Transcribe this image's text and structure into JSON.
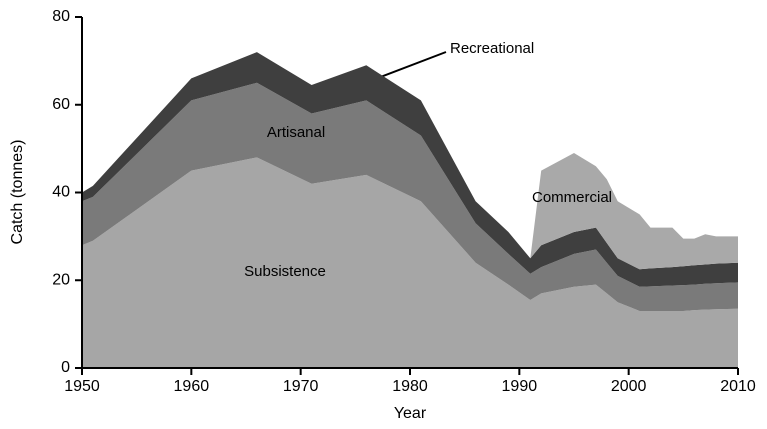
{
  "chart_data": {
    "type": "stacked_area",
    "x_label": "Year",
    "y_label": "Catch (tonnes)",
    "x": [
      1950,
      1951,
      1960,
      1966,
      1971,
      1976,
      1981,
      1986,
      1989,
      1991,
      1992,
      1995,
      1997,
      1998,
      1999,
      2001,
      2002,
      2004,
      2005,
      2006,
      2007,
      2008,
      2010
    ],
    "series": [
      {
        "name": "Subsistence",
        "color": "#a6a6a6",
        "values": [
          28,
          29,
          45,
          48,
          42,
          44,
          38,
          24,
          19,
          15.5,
          17,
          18.5,
          19,
          17,
          15,
          13,
          13,
          13,
          13,
          13.2,
          13.3,
          13.4,
          13.5
        ]
      },
      {
        "name": "Artisanal",
        "color": "#7a7a7a",
        "values": [
          10,
          10,
          16,
          17,
          16,
          17,
          15,
          9,
          7,
          6,
          6,
          7.5,
          8,
          7,
          6,
          5.5,
          5.6,
          5.8,
          5.9,
          5.8,
          5.9,
          5.9,
          6
        ]
      },
      {
        "name": "Recreational",
        "color": "#3f3f3f",
        "values": [
          2,
          2.5,
          5,
          7,
          6.5,
          8,
          8,
          5,
          5,
          3.5,
          5,
          5,
          5,
          4.5,
          4,
          4,
          4.1,
          4.2,
          4.3,
          4.4,
          4.4,
          4.5,
          4.5
        ]
      },
      {
        "name": "Commercial",
        "color": "#a9a9a9",
        "values": [
          null,
          null,
          null,
          null,
          null,
          null,
          null,
          null,
          null,
          0,
          17,
          18,
          14,
          14.5,
          13,
          12.5,
          9.3,
          9,
          6.3,
          6.1,
          6.9,
          6.2,
          6
        ]
      }
    ],
    "xlim": [
      1950,
      2010
    ],
    "xticks": [
      1950,
      1960,
      1970,
      1980,
      1990,
      2000,
      2010
    ],
    "ylim": [
      0,
      80
    ],
    "yticks": [
      0,
      20,
      40,
      60,
      80
    ]
  }
}
